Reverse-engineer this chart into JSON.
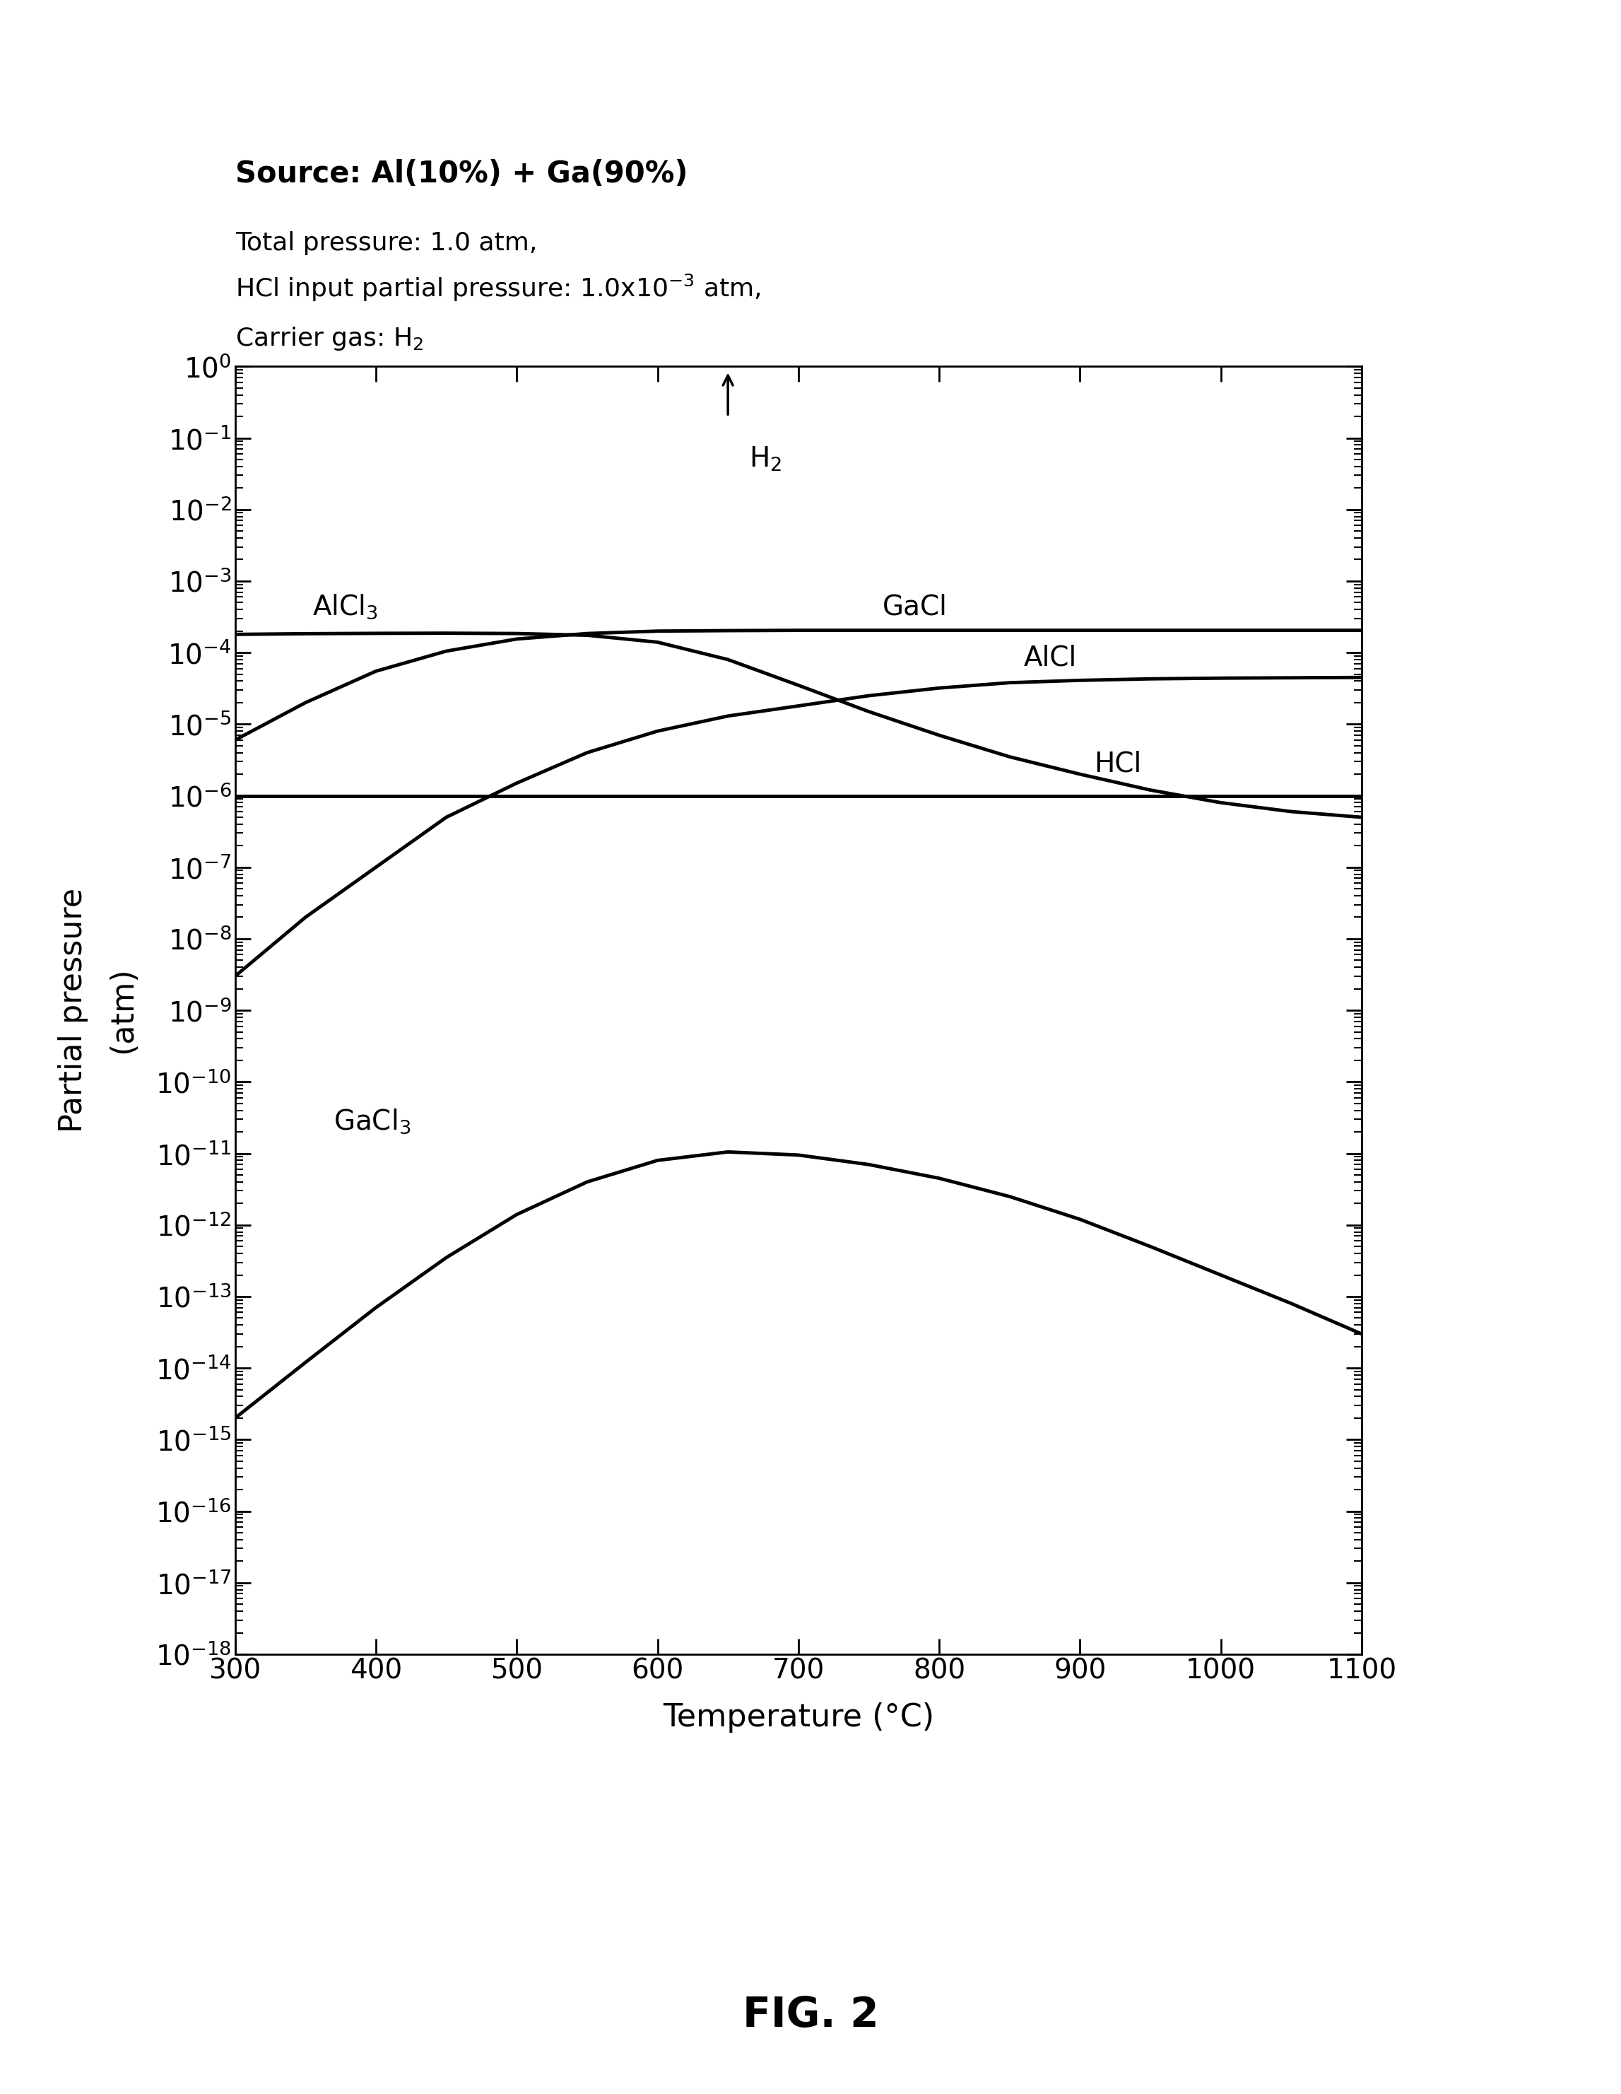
{
  "title_line1": "Source: Al(10%) + Ga(90%)",
  "xlabel": "Temperature (°C)",
  "ylabel": "Partial pressure\n(atm)",
  "fig_label": "FIG. 2",
  "line_color": "#000000",
  "background_color": "#ffffff",
  "T": [
    300,
    350,
    400,
    450,
    500,
    550,
    600,
    650,
    700,
    750,
    800,
    850,
    900,
    950,
    1000,
    1050,
    1100
  ],
  "AlCl3": [
    0.00018,
    0.000184,
    0.000186,
    0.000187,
    0.000185,
    0.000175,
    0.00014,
    8e-05,
    3.5e-05,
    1.5e-05,
    7e-06,
    3.5e-06,
    2e-06,
    1.2e-06,
    8e-07,
    6e-07,
    5e-07
  ],
  "GaCl": [
    6e-06,
    2e-05,
    5.5e-05,
    0.000105,
    0.000155,
    0.000185,
    0.0002,
    0.000203,
    0.000205,
    0.000205,
    0.000205,
    0.000205,
    0.000205,
    0.000205,
    0.000205,
    0.000205,
    0.000205
  ],
  "AlCl": [
    3e-09,
    2e-08,
    1e-07,
    5e-07,
    1.5e-06,
    4e-06,
    8e-06,
    1.3e-05,
    1.8e-05,
    2.5e-05,
    3.2e-05,
    3.8e-05,
    4.1e-05,
    4.3e-05,
    4.4e-05,
    4.45e-05,
    4.5e-05
  ],
  "HCl": [
    1e-06,
    1e-06,
    1e-06,
    1e-06,
    1e-06,
    1e-06,
    1e-06,
    1e-06,
    1e-06,
    1e-06,
    1e-06,
    1e-06,
    1e-06,
    1e-06,
    1e-06,
    1e-06,
    1e-06
  ],
  "GaCl3": [
    2e-15,
    1.2e-14,
    7e-14,
    3.5e-13,
    1.4e-12,
    4e-12,
    8e-12,
    1.05e-11,
    9.5e-12,
    7e-12,
    4.5e-12,
    2.5e-12,
    1.2e-12,
    5e-13,
    2e-13,
    8e-14,
    3e-14
  ]
}
